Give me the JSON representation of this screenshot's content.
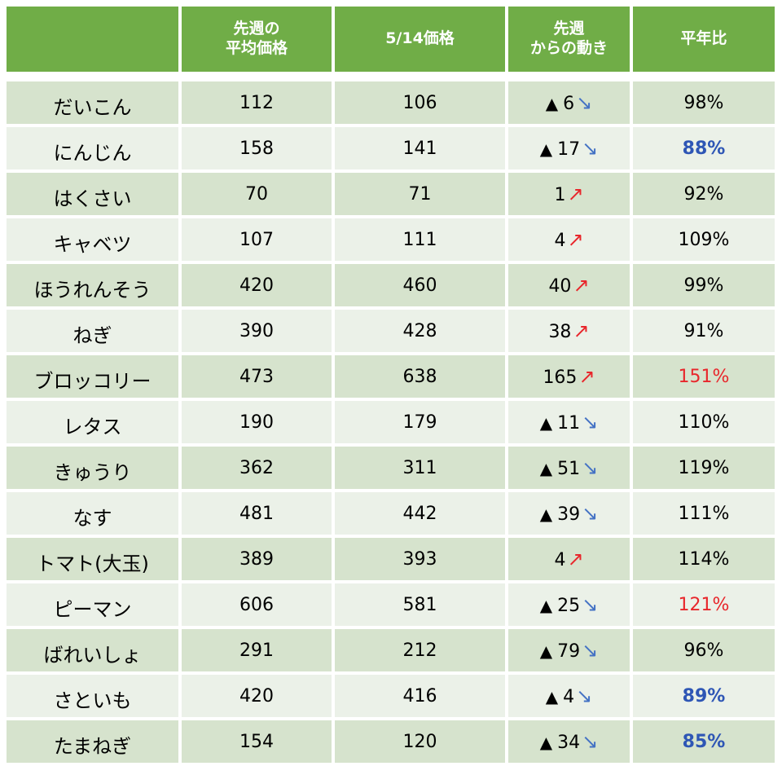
{
  "header": {
    "col_item": "",
    "col_last_week_line1": "先週の",
    "col_last_week_line2": "平均価格",
    "col_date": "5/14価格",
    "col_change_line1": "先週",
    "col_change_line2": "からの動き",
    "col_ratio": "平年比"
  },
  "symbols": {
    "down_mark": "▲",
    "arrow_down": "↘",
    "arrow_up": "↗"
  },
  "colors": {
    "header_bg": "#70ad47",
    "row_dark": "#d6e3cd",
    "row_light": "#ebf1e8",
    "ratio_low": "#2e56b5",
    "ratio_high": "#e8262b"
  },
  "rows": [
    {
      "name": "だいこん",
      "last_week": "112",
      "today": "106",
      "direction": "down",
      "change": "6",
      "ratio": "98%",
      "ratio_style": "normal"
    },
    {
      "name": "にんじん",
      "last_week": "158",
      "today": "141",
      "direction": "down",
      "change": "17",
      "ratio": "88%",
      "ratio_style": "blue"
    },
    {
      "name": "はくさい",
      "last_week": "70",
      "today": "71",
      "direction": "up",
      "change": "1",
      "ratio": "92%",
      "ratio_style": "normal"
    },
    {
      "name": "キャベツ",
      "last_week": "107",
      "today": "111",
      "direction": "up",
      "change": "4",
      "ratio": "109%",
      "ratio_style": "normal"
    },
    {
      "name": "ほうれんそう",
      "last_week": "420",
      "today": "460",
      "direction": "up",
      "change": "40",
      "ratio": "99%",
      "ratio_style": "normal"
    },
    {
      "name": "ねぎ",
      "last_week": "390",
      "today": "428",
      "direction": "up",
      "change": "38",
      "ratio": "91%",
      "ratio_style": "normal"
    },
    {
      "name": "ブロッコリー",
      "last_week": "473",
      "today": "638",
      "direction": "up",
      "change": "165",
      "ratio": "151%",
      "ratio_style": "red"
    },
    {
      "name": "レタス",
      "last_week": "190",
      "today": "179",
      "direction": "down",
      "change": "11",
      "ratio": "110%",
      "ratio_style": "normal"
    },
    {
      "name": "きゅうり",
      "last_week": "362",
      "today": "311",
      "direction": "down",
      "change": "51",
      "ratio": "119%",
      "ratio_style": "normal"
    },
    {
      "name": "なす",
      "last_week": "481",
      "today": "442",
      "direction": "down",
      "change": "39",
      "ratio": "111%",
      "ratio_style": "normal"
    },
    {
      "name": "トマト(大玉)",
      "last_week": "389",
      "today": "393",
      "direction": "up",
      "change": "4",
      "ratio": "114%",
      "ratio_style": "normal"
    },
    {
      "name": "ピーマン",
      "last_week": "606",
      "today": "581",
      "direction": "down",
      "change": "25",
      "ratio": "121%",
      "ratio_style": "red"
    },
    {
      "name": "ばれいしょ",
      "last_week": "291",
      "today": "212",
      "direction": "down",
      "change": "79",
      "ratio": "96%",
      "ratio_style": "normal"
    },
    {
      "name": "さといも",
      "last_week": "420",
      "today": "416",
      "direction": "down",
      "change": "4",
      "ratio": "89%",
      "ratio_style": "blue"
    },
    {
      "name": "たまねぎ",
      "last_week": "154",
      "today": "120",
      "direction": "down",
      "change": "34",
      "ratio": "85%",
      "ratio_style": "blue"
    }
  ]
}
